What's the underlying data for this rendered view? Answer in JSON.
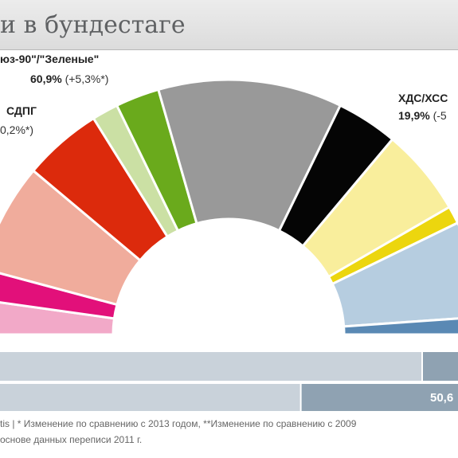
{
  "title": "и в бундестаге",
  "labels": {
    "greens_name": "юз-90\"/\"Зеленые\"",
    "greens_value": "60,9%",
    "greens_change": "(+5,3%*)",
    "spd_name": "СДПГ",
    "spd_change": "0,2%*)",
    "cdu_name": "ХДС/ХСС",
    "cdu_value": "19,9%",
    "cdu_change": "(-5"
  },
  "bars": {
    "bar2_label": "50,6"
  },
  "footer": {
    "line1": "tis |  * Изменение по сравнению с 2013 годом, **Изменение по сравнению с 2009",
    "line2": "основе данных переписи 2011 г."
  },
  "chart_data": {
    "type": "pie",
    "subtype": "semicircle-seat-distribution",
    "title": "и в бундестаге",
    "segments_left_to_right": [
      {
        "color": "#f2a9c8"
      },
      {
        "color": "#e2107a"
      },
      {
        "color": "#f0ac9c"
      },
      {
        "color": "#dc2a0c"
      },
      {
        "color": "#cbe0a4"
      },
      {
        "color": "#6aaa1c"
      },
      {
        "color": "#999999"
      },
      {
        "color": "#050505"
      },
      {
        "color": "#f9ee9c"
      },
      {
        "color": "#ecd60e"
      },
      {
        "color": "#b6cde0"
      },
      {
        "color": "#5a89b4"
      }
    ],
    "annotations": [
      {
        "text": "юз-90\"/\"Зеленые\"",
        "value": "60,9%",
        "change": "(+5,3%*)"
      },
      {
        "text": "СДПГ",
        "change": "0,2%*)"
      },
      {
        "text": "ХДС/ХСС",
        "value": "19,9%",
        "change": "(-5"
      }
    ],
    "bars": [
      {
        "fill_fraction": 0.92,
        "light_color": "#c9d2da",
        "dark_color": "#8fa2b2"
      },
      {
        "fill_fraction": 0.655,
        "light_color": "#c9d2da",
        "dark_color": "#8fa2b2",
        "label": "50,6"
      }
    ]
  }
}
